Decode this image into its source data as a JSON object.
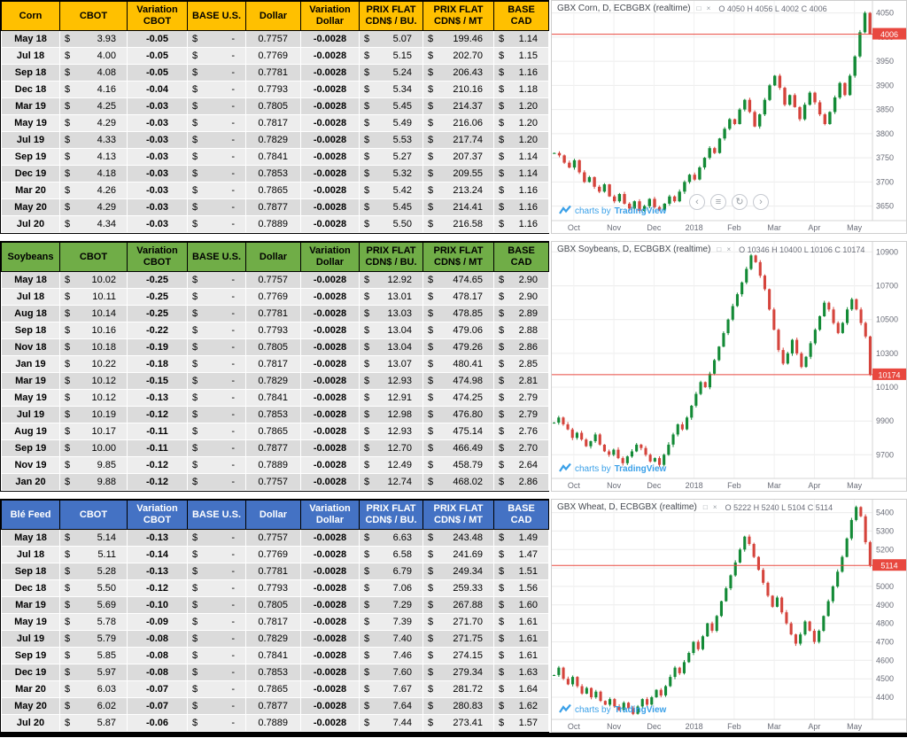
{
  "variation_color": "#FF0000",
  "tables": [
    {
      "name": "Corn",
      "header_bg": "#FFC000",
      "header_fg": "#000000",
      "columns": [
        "Corn",
        "CBOT",
        "Variation CBOT",
        "BASE U.S.",
        "Dollar",
        "Variation Dollar",
        "PRIX FLAT CDN$ / BU.",
        "PRIX FLAT CDN$ / MT",
        "BASE CAD"
      ],
      "rows": [
        [
          "May 18",
          "3.93",
          "-0.05",
          "-",
          "0.7757",
          "-0.0028",
          "5.07",
          "199.46",
          "1.14"
        ],
        [
          "Jul 18",
          "4.00",
          "-0.05",
          "-",
          "0.7769",
          "-0.0028",
          "5.15",
          "202.70",
          "1.15"
        ],
        [
          "Sep 18",
          "4.08",
          "-0.05",
          "-",
          "0.7781",
          "-0.0028",
          "5.24",
          "206.43",
          "1.16"
        ],
        [
          "Dec 18",
          "4.16",
          "-0.04",
          "-",
          "0.7793",
          "-0.0028",
          "5.34",
          "210.16",
          "1.18"
        ],
        [
          "Mar 19",
          "4.25",
          "-0.03",
          "-",
          "0.7805",
          "-0.0028",
          "5.45",
          "214.37",
          "1.20"
        ],
        [
          "May 19",
          "4.29",
          "-0.03",
          "-",
          "0.7817",
          "-0.0028",
          "5.49",
          "216.06",
          "1.20"
        ],
        [
          "Jul 19",
          "4.33",
          "-0.03",
          "-",
          "0.7829",
          "-0.0028",
          "5.53",
          "217.74",
          "1.20"
        ],
        [
          "Sep 19",
          "4.13",
          "-0.03",
          "-",
          "0.7841",
          "-0.0028",
          "5.27",
          "207.37",
          "1.14"
        ],
        [
          "Dec 19",
          "4.18",
          "-0.03",
          "-",
          "0.7853",
          "-0.0028",
          "5.32",
          "209.55",
          "1.14"
        ],
        [
          "Mar 20",
          "4.26",
          "-0.03",
          "-",
          "0.7865",
          "-0.0028",
          "5.42",
          "213.24",
          "1.16"
        ],
        [
          "May 20",
          "4.29",
          "-0.03",
          "-",
          "0.7877",
          "-0.0028",
          "5.45",
          "214.41",
          "1.16"
        ],
        [
          "Jul 20",
          "4.34",
          "-0.03",
          "-",
          "0.7889",
          "-0.0028",
          "5.50",
          "216.58",
          "1.16"
        ]
      ]
    },
    {
      "name": "Soybeans",
      "header_bg": "#70AD47",
      "header_fg": "#000000",
      "columns": [
        "Soybeans",
        "CBOT",
        "Variation CBOT",
        "BASE U.S.",
        "Dollar",
        "Variation Dollar",
        "PRIX FLAT CDN$ / BU.",
        "PRIX FLAT CDN$ / MT",
        "BASE CAD"
      ],
      "rows": [
        [
          "May 18",
          "10.02",
          "-0.25",
          "-",
          "0.7757",
          "-0.0028",
          "12.92",
          "474.65",
          "2.90"
        ],
        [
          "Jul 18",
          "10.11",
          "-0.25",
          "-",
          "0.7769",
          "-0.0028",
          "13.01",
          "478.17",
          "2.90"
        ],
        [
          "Aug 18",
          "10.14",
          "-0.25",
          "-",
          "0.7781",
          "-0.0028",
          "13.03",
          "478.85",
          "2.89"
        ],
        [
          "Sep 18",
          "10.16",
          "-0.22",
          "-",
          "0.7793",
          "-0.0028",
          "13.04",
          "479.06",
          "2.88"
        ],
        [
          "Nov 18",
          "10.18",
          "-0.19",
          "-",
          "0.7805",
          "-0.0028",
          "13.04",
          "479.26",
          "2.86"
        ],
        [
          "Jan 19",
          "10.22",
          "-0.18",
          "-",
          "0.7817",
          "-0.0028",
          "13.07",
          "480.41",
          "2.85"
        ],
        [
          "Mar 19",
          "10.12",
          "-0.15",
          "-",
          "0.7829",
          "-0.0028",
          "12.93",
          "474.98",
          "2.81"
        ],
        [
          "May 19",
          "10.12",
          "-0.13",
          "-",
          "0.7841",
          "-0.0028",
          "12.91",
          "474.25",
          "2.79"
        ],
        [
          "Jul 19",
          "10.19",
          "-0.12",
          "-",
          "0.7853",
          "-0.0028",
          "12.98",
          "476.80",
          "2.79"
        ],
        [
          "Aug 19",
          "10.17",
          "-0.11",
          "-",
          "0.7865",
          "-0.0028",
          "12.93",
          "475.14",
          "2.76"
        ],
        [
          "Sep 19",
          "10.00",
          "-0.11",
          "-",
          "0.7877",
          "-0.0028",
          "12.70",
          "466.49",
          "2.70"
        ],
        [
          "Nov 19",
          "9.85",
          "-0.12",
          "-",
          "0.7889",
          "-0.0028",
          "12.49",
          "458.79",
          "2.64"
        ],
        [
          "Jan 20",
          "9.88",
          "-0.12",
          "-",
          "0.7757",
          "-0.0028",
          "12.74",
          "468.02",
          "2.86"
        ]
      ]
    },
    {
      "name": "Blé Feed",
      "header_bg": "#4472C4",
      "header_fg": "#FFFFFF",
      "columns": [
        "Blé Feed",
        "CBOT",
        "Variation CBOT",
        "BASE U.S.",
        "Dollar",
        "Variation Dollar",
        "PRIX FLAT CDN$ / BU.",
        "PRIX FLAT CDN$ / MT",
        "BASE CAD"
      ],
      "rows": [
        [
          "May 18",
          "5.14",
          "-0.13",
          "-",
          "0.7757",
          "-0.0028",
          "6.63",
          "243.48",
          "1.49"
        ],
        [
          "Jul 18",
          "5.11",
          "-0.14",
          "-",
          "0.7769",
          "-0.0028",
          "6.58",
          "241.69",
          "1.47"
        ],
        [
          "Sep 18",
          "5.28",
          "-0.13",
          "-",
          "0.7781",
          "-0.0028",
          "6.79",
          "249.34",
          "1.51"
        ],
        [
          "Dec 18",
          "5.50",
          "-0.12",
          "-",
          "0.7793",
          "-0.0028",
          "7.06",
          "259.33",
          "1.56"
        ],
        [
          "Mar 19",
          "5.69",
          "-0.10",
          "-",
          "0.7805",
          "-0.0028",
          "7.29",
          "267.88",
          "1.60"
        ],
        [
          "May 19",
          "5.78",
          "-0.09",
          "-",
          "0.7817",
          "-0.0028",
          "7.39",
          "271.70",
          "1.61"
        ],
        [
          "Jul 19",
          "5.79",
          "-0.08",
          "-",
          "0.7829",
          "-0.0028",
          "7.40",
          "271.75",
          "1.61"
        ],
        [
          "Sep 19",
          "5.85",
          "-0.08",
          "-",
          "0.7841",
          "-0.0028",
          "7.46",
          "274.15",
          "1.61"
        ],
        [
          "Dec 19",
          "5.97",
          "-0.08",
          "-",
          "0.7853",
          "-0.0028",
          "7.60",
          "279.34",
          "1.63"
        ],
        [
          "Mar 20",
          "6.03",
          "-0.07",
          "-",
          "0.7865",
          "-0.0028",
          "7.67",
          "281.72",
          "1.64"
        ],
        [
          "May 20",
          "6.02",
          "-0.07",
          "-",
          "0.7877",
          "-0.0028",
          "7.64",
          "280.83",
          "1.62"
        ],
        [
          "Jul 20",
          "5.87",
          "-0.06",
          "-",
          "0.7889",
          "-0.0028",
          "7.44",
          "273.41",
          "1.57"
        ]
      ]
    }
  ],
  "chart_data": [
    {
      "type": "candlestick",
      "title": "GBX Corn, D, ECBGBX (realtime)",
      "legend_icons": "□ ×",
      "ohlc_label": "O 4050 H 4056 L 4002 C 4006",
      "wm_pre": "charts by",
      "wm_brand": "TradingView",
      "up_color": "#138a36",
      "down_color": "#d5443c",
      "last_price": 4006,
      "last_price_label": "4006",
      "ylim": [
        3620,
        4075
      ],
      "yticks": [
        4050,
        4000,
        3950,
        3900,
        3850,
        3800,
        3750,
        3700,
        3650
      ],
      "xticks": [
        "Oct",
        "Nov",
        "Dec",
        "2018",
        "Feb",
        "Mar",
        "Apr",
        "May"
      ],
      "closes": [
        3760,
        3755,
        3740,
        3730,
        3745,
        3720,
        3700,
        3710,
        3690,
        3680,
        3695,
        3670,
        3660,
        3675,
        3655,
        3645,
        3660,
        3640,
        3650,
        3665,
        3648,
        3642,
        3655,
        3670,
        3660,
        3680,
        3700,
        3715,
        3705,
        3730,
        3750,
        3770,
        3760,
        3790,
        3810,
        3830,
        3820,
        3850,
        3870,
        3845,
        3815,
        3840,
        3870,
        3900,
        3920,
        3895,
        3860,
        3880,
        3855,
        3830,
        3860,
        3885,
        3865,
        3840,
        3820,
        3845,
        3875,
        3905,
        3880,
        3920,
        3960,
        4010,
        4050,
        4006
      ],
      "nav_icons": [
        {
          "name": "scroll-left-icon",
          "glyph": "‹"
        },
        {
          "name": "menu-icon",
          "glyph": "≡"
        },
        {
          "name": "reset-zoom-icon",
          "glyph": "↻"
        },
        {
          "name": "scroll-right-icon",
          "glyph": "›"
        }
      ]
    },
    {
      "type": "candlestick",
      "title": "GBX Soybeans, D, ECBGBX (realtime)",
      "legend_icons": "□ ×",
      "ohlc_label": "O 10346 H 10400 L 10106 C 10174",
      "wm_pre": "charts by",
      "wm_brand": "TradingView",
      "up_color": "#138a36",
      "down_color": "#d5443c",
      "last_price": 10174,
      "last_price_label": "10174",
      "ylim": [
        9560,
        10960
      ],
      "yticks": [
        10900,
        10700,
        10500,
        10300,
        10100,
        9900,
        9700
      ],
      "xticks": [
        "Oct",
        "Nov",
        "Dec",
        "2018",
        "Feb",
        "Mar",
        "Apr",
        "May"
      ],
      "closes": [
        9890,
        9920,
        9880,
        9850,
        9800,
        9830,
        9790,
        9750,
        9780,
        9820,
        9760,
        9720,
        9700,
        9730,
        9680,
        9650,
        9690,
        9720,
        9760,
        9740,
        9700,
        9660,
        9680,
        9640,
        9700,
        9760,
        9820,
        9880,
        9850,
        9920,
        9990,
        10060,
        10130,
        10100,
        10180,
        10260,
        10340,
        10420,
        10500,
        10580,
        10650,
        10720,
        10800,
        10880,
        10840,
        10760,
        10680,
        10560,
        10440,
        10320,
        10240,
        10300,
        10380,
        10300,
        10220,
        10280,
        10360,
        10440,
        10520,
        10600,
        10560,
        10480,
        10420,
        10480,
        10560,
        10620,
        10560,
        10480,
        10400,
        10174
      ]
    },
    {
      "type": "candlestick",
      "title": "GBX Wheat, D, ECBGBX (realtime)",
      "legend_icons": "□ ×",
      "ohlc_label": "O 5222 H 5240 L 5104 C 5114",
      "wm_pre": "charts by",
      "wm_brand": "TradingView",
      "up_color": "#138a36",
      "down_color": "#d5443c",
      "last_price": 5114,
      "last_price_label": "5114",
      "ylim": [
        4280,
        5470
      ],
      "yticks": [
        5400,
        5300,
        5200,
        5100,
        5000,
        4900,
        4800,
        4700,
        4600,
        4500,
        4400
      ],
      "xticks": [
        "Oct",
        "Nov",
        "Dec",
        "2018",
        "Feb",
        "Mar",
        "Apr",
        "May"
      ],
      "closes": [
        4520,
        4560,
        4500,
        4470,
        4510,
        4460,
        4420,
        4450,
        4400,
        4430,
        4380,
        4360,
        4390,
        4350,
        4330,
        4370,
        4340,
        4310,
        4350,
        4390,
        4360,
        4400,
        4440,
        4410,
        4460,
        4510,
        4560,
        4530,
        4590,
        4640,
        4700,
        4660,
        4730,
        4800,
        4760,
        4840,
        4920,
        4990,
        5060,
        5130,
        5200,
        5270,
        5230,
        5160,
        5090,
        5020,
        4950,
        4890,
        4940,
        4860,
        4800,
        4740,
        4690,
        4740,
        4810,
        4760,
        4700,
        4760,
        4840,
        4920,
        5000,
        5080,
        5160,
        5260,
        5360,
        5430,
        5380,
        5240,
        5114
      ]
    }
  ]
}
